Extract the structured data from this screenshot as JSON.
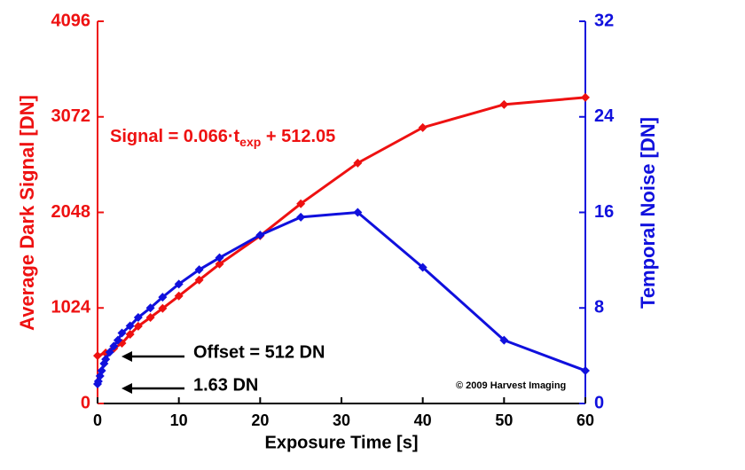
{
  "chart_data": {
    "type": "line",
    "x_label": "Exposure Time [s]",
    "y_label": "Average Dark Signal [DN]",
    "y2_label": "Temporal Noise [DN]",
    "xlim": [
      0,
      60
    ],
    "xticks": [
      0,
      10,
      20,
      30,
      40,
      50,
      60
    ],
    "ylim": [
      0,
      4096
    ],
    "yticks": [
      0,
      1024,
      2048,
      3072,
      4096
    ],
    "y2lim": [
      0,
      32
    ],
    "y2ticks": [
      0,
      8,
      16,
      24,
      32
    ],
    "grid": false,
    "annotations": {
      "formula": [
        "Signal = 0.066·t",
        "exp",
        " + 512.05"
      ],
      "offset": "Offset = 512 DN",
      "noise": "1.63 DN",
      "copyright": "© 2009 Harvest Imaging"
    },
    "series": [
      {
        "name": "Average Dark Signal",
        "color": "#ee1111",
        "x": [
          0,
          1,
          2,
          3,
          4,
          5,
          6.5,
          8,
          10,
          12.5,
          15,
          20,
          25,
          32,
          40,
          50,
          60
        ],
        "values": [
          512,
          542,
          590,
          646,
          741,
          828,
          922,
          1019,
          1152,
          1323,
          1494,
          1797,
          2141,
          2577,
          2957,
          3204,
          3280
        ]
      },
      {
        "name": "Temporal Noise",
        "color": "#1010dd",
        "axis": "y2",
        "x": [
          0,
          0.1,
          0.3,
          0.5,
          0.8,
          1,
          1.5,
          2,
          2.5,
          3,
          4,
          5,
          6.5,
          8,
          10,
          12.5,
          15,
          20,
          25,
          32,
          40,
          50,
          60
        ],
        "values": [
          1.63,
          1.86,
          2.3,
          2.75,
          3.34,
          3.7,
          4.3,
          4.8,
          5.3,
          5.9,
          6.5,
          7.2,
          8.0,
          8.9,
          10.0,
          11.2,
          12.2,
          14.1,
          15.6,
          16.0,
          11.4,
          5.3,
          2.75
        ]
      }
    ]
  }
}
